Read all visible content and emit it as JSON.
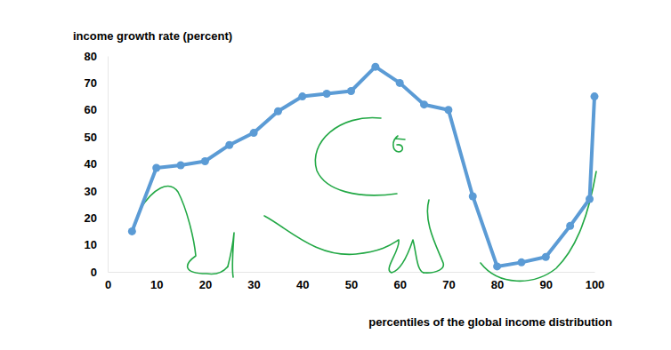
{
  "chart_data": {
    "type": "line",
    "y_label": "income growth rate (percent)",
    "x_label": "percentiles of the global income distribution",
    "x": [
      5,
      10,
      15,
      20,
      25,
      30,
      35,
      40,
      45,
      50,
      55,
      60,
      65,
      70,
      75,
      80,
      85,
      90,
      95,
      99,
      100
    ],
    "values": [
      15,
      38.5,
      39.5,
      41,
      47,
      51.5,
      59.5,
      65,
      66,
      67,
      76,
      70,
      62,
      60,
      28,
      2,
      3.5,
      5.5,
      17,
      27,
      65
    ],
    "color": "#5b9bd5",
    "marker": "circle",
    "line_style": "solid",
    "xlim": [
      0,
      100
    ],
    "ylim": [
      0,
      80
    ],
    "xticks": [
      0,
      10,
      20,
      30,
      40,
      50,
      60,
      70,
      80,
      90,
      100
    ],
    "yticks": [
      0,
      10,
      20,
      30,
      40,
      50,
      60,
      70,
      80
    ],
    "grid": false
  }
}
